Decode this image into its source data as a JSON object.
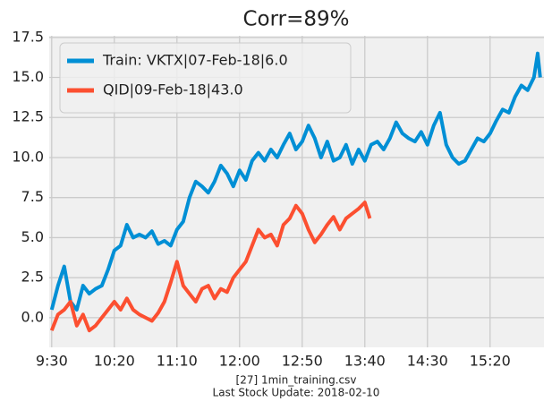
{
  "chart_data": {
    "type": "line",
    "title": "Corr=89%",
    "notes": [
      "[27] 1min_training.csv",
      "Last Stock Update: 2018-02-10"
    ],
    "xlim": [
      -2,
      393
    ],
    "ylim": [
      -1.85,
      17.6
    ],
    "xticks": [
      {
        "value": 0,
        "label": "9:30"
      },
      {
        "value": 50,
        "label": "10:20"
      },
      {
        "value": 100,
        "label": "11:10"
      },
      {
        "value": 150,
        "label": "12:00"
      },
      {
        "value": 200,
        "label": "12:50"
      },
      {
        "value": 250,
        "label": "13:40"
      },
      {
        "value": 300,
        "label": "14:30"
      },
      {
        "value": 350,
        "label": "15:20"
      }
    ],
    "yticks": [
      {
        "value": 0,
        "label": "0.0"
      },
      2.5,
      {
        "value": 5,
        "label": "5.0"
      },
      7.5,
      {
        "value": 10,
        "label": "10.0"
      },
      12.5,
      {
        "value": 15,
        "label": "15.0"
      },
      17.5
    ],
    "grid": true,
    "legend": "upper left",
    "series": [
      {
        "name": "Train: VKTX|07-Feb-18|6.0",
        "color": "#008fd5",
        "x": [
          0,
          5,
          10,
          15,
          20,
          25,
          30,
          35,
          40,
          45,
          50,
          55,
          60,
          65,
          70,
          75,
          80,
          85,
          90,
          95,
          100,
          105,
          110,
          115,
          120,
          125,
          130,
          135,
          140,
          145,
          150,
          155,
          160,
          165,
          170,
          175,
          180,
          185,
          190,
          195,
          200,
          205,
          210,
          215,
          220,
          225,
          230,
          235,
          240,
          245,
          250,
          255,
          260,
          265,
          270,
          275,
          280,
          285,
          290,
          295,
          300,
          305,
          310,
          315,
          320,
          325,
          330,
          335,
          340,
          345,
          350,
          355,
          360,
          365,
          370,
          375,
          380,
          385,
          388,
          390
        ],
        "values": [
          0.5,
          2.0,
          3.2,
          1.0,
          0.5,
          2.0,
          1.5,
          1.8,
          2.0,
          3.0,
          4.2,
          4.5,
          5.8,
          5.0,
          5.2,
          5.0,
          5.4,
          4.6,
          4.8,
          4.5,
          5.5,
          6.0,
          7.5,
          8.5,
          8.2,
          7.8,
          8.5,
          9.5,
          9.0,
          8.2,
          9.2,
          8.6,
          9.8,
          10.3,
          9.8,
          10.5,
          10.0,
          10.8,
          11.5,
          10.5,
          11.0,
          12.0,
          11.2,
          10.0,
          11.0,
          9.8,
          10.0,
          10.8,
          9.6,
          10.5,
          9.8,
          10.8,
          11.0,
          10.5,
          11.2,
          12.2,
          11.5,
          11.2,
          11.0,
          11.6,
          10.8,
          12.0,
          12.8,
          10.8,
          10.0,
          9.6,
          9.8,
          10.5,
          11.2,
          11.0,
          11.5,
          12.3,
          13.0,
          12.8,
          13.8,
          14.5,
          14.2,
          15.0,
          16.5,
          15.0
        ]
      },
      {
        "name": "QID|09-Feb-18|43.0",
        "color": "#fc4f30",
        "x": [
          0,
          5,
          10,
          15,
          20,
          25,
          30,
          35,
          40,
          45,
          50,
          55,
          60,
          65,
          70,
          75,
          80,
          85,
          90,
          95,
          100,
          105,
          110,
          115,
          120,
          125,
          130,
          135,
          140,
          145,
          150,
          155,
          160,
          165,
          170,
          175,
          180,
          185,
          190,
          195,
          200,
          205,
          210,
          215,
          220,
          225,
          230,
          235,
          240,
          245,
          250,
          254
        ],
        "values": [
          -0.8,
          0.2,
          0.5,
          1.0,
          -0.5,
          0.2,
          -0.8,
          -0.5,
          0.0,
          0.5,
          1.0,
          0.5,
          1.2,
          0.5,
          0.2,
          0.0,
          -0.2,
          0.3,
          1.0,
          2.2,
          3.5,
          2.0,
          1.5,
          1.0,
          1.8,
          2.0,
          1.2,
          1.8,
          1.6,
          2.5,
          3.0,
          3.5,
          4.5,
          5.5,
          5.0,
          5.2,
          4.5,
          5.8,
          6.2,
          7.0,
          6.5,
          5.5,
          4.7,
          5.2,
          5.8,
          6.3,
          5.5,
          6.2,
          6.5,
          6.8,
          7.2,
          6.2
        ]
      }
    ]
  }
}
